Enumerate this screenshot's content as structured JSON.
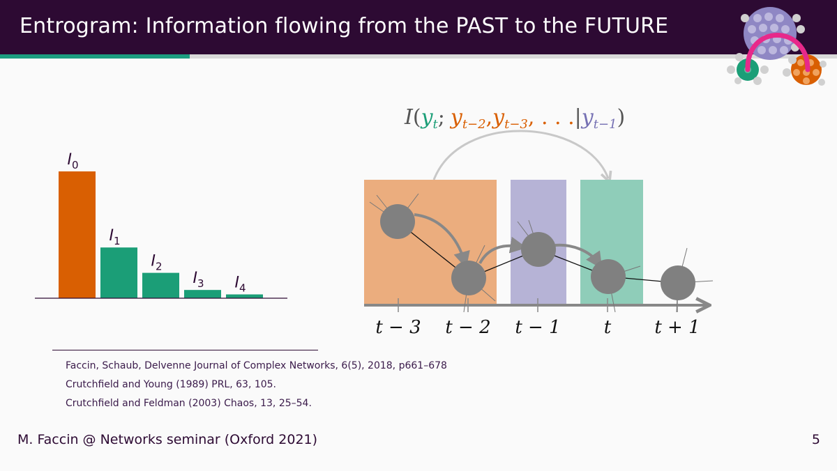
{
  "slide": {
    "title": "Entrogram: Information flowing from the PAST to the FUTURE",
    "page_number": "5",
    "footer": "M. Faccin @ Networks seminar (Oxford 2021)"
  },
  "colors": {
    "header_bg": "#2d0a33",
    "orange": "#d95f02",
    "green": "#1b9e77",
    "purple": "#7570b3",
    "node_gray": "#808080",
    "arrow_gray": "#c8c8c8",
    "magenta": "#e7298a"
  },
  "entrogram": {
    "bars": [
      {
        "label": "I",
        "sub": "0",
        "value": 1.0,
        "color": "#d95f02"
      },
      {
        "label": "I",
        "sub": "1",
        "value": 0.4,
        "color": "#1b9e77"
      },
      {
        "label": "I",
        "sub": "2",
        "value": 0.2,
        "color": "#1b9e77"
      },
      {
        "label": "I",
        "sub": "3",
        "value": 0.065,
        "color": "#1b9e77"
      },
      {
        "label": "I",
        "sub": "4",
        "value": 0.03,
        "color": "#1b9e77"
      }
    ]
  },
  "diagram": {
    "formula": {
      "I": "I",
      "open": "(",
      "target": "y",
      "target_sub": "t",
      "sep": ";",
      "past1": "y",
      "past1_sub": "t−2",
      "comma1": ",",
      "past2": "y",
      "past2_sub": "t−3",
      "ellipsis": ", . . .",
      "bar": "|",
      "cond": "y",
      "cond_sub": "t−1",
      "close": ")"
    },
    "time_labels": [
      "t − 3",
      "t − 2",
      "t − 1",
      "t",
      "t + 1"
    ]
  },
  "references": [
    "Faccin, Schaub, Delvenne Journal of Complex Networks, 6(5), 2018, p661–678",
    "Crutchfield and Young (1989) PRL, 63, 105.",
    "Crutchfield and Feldman (2003) Chaos, 13, 25–54."
  ]
}
